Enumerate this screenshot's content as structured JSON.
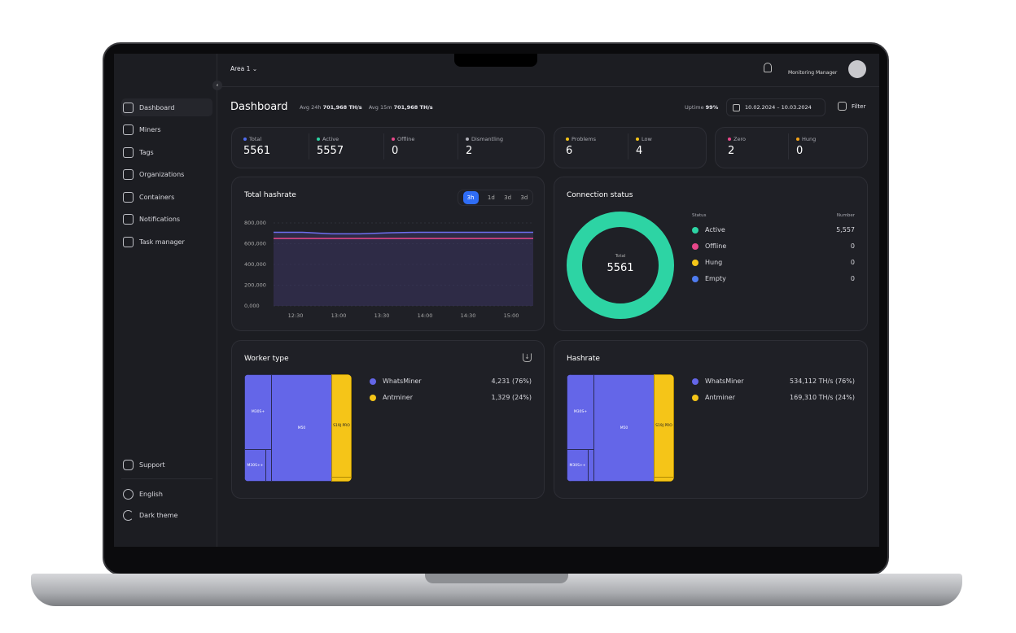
{
  "header": {
    "area": "Area 1",
    "user": "Monitoring Manager"
  },
  "sidebar": {
    "items": [
      {
        "label": "Dashboard",
        "icon": "home-icon"
      },
      {
        "label": "Miners",
        "icon": "miner-icon"
      },
      {
        "label": "Tags",
        "icon": "tag-icon"
      },
      {
        "label": "Organizations",
        "icon": "organizations-icon"
      },
      {
        "label": "Containers",
        "icon": "containers-icon"
      },
      {
        "label": "Notifications",
        "icon": "bell-icon"
      },
      {
        "label": "Task manager",
        "icon": "task-icon"
      }
    ],
    "support": "Support",
    "language": "English",
    "theme": "Dark theme"
  },
  "page": {
    "title": "Dashboard",
    "avg24_label": "Avg 24h",
    "avg24": "701,968 TH/s",
    "avg15_label": "Avg 15m",
    "avg15": "701,968 TH/s",
    "uptime_label": "Uptime",
    "uptime": "99%",
    "date_range": "10.02.2024 – 10.03.2024",
    "filter": "Filter"
  },
  "stats": [
    {
      "label": "Total",
      "value": "5561",
      "color": "#4f6cf0"
    },
    {
      "label": "Active",
      "value": "5557",
      "color": "#2dd4a4"
    },
    {
      "label": "Offline",
      "value": "0",
      "color": "#e8478a"
    },
    {
      "label": "Dismantling",
      "value": "2",
      "color": "#b0b0b8"
    },
    {
      "label": "Problems",
      "value": "6",
      "color": "#f5c518"
    },
    {
      "label": "Low",
      "value": "4",
      "color": "#f5c518"
    },
    {
      "label": "Zero",
      "value": "2",
      "color": "#e8478a"
    },
    {
      "label": "Hung",
      "value": "0",
      "color": "#f5a318"
    }
  ],
  "hashrate_chart": {
    "title": "Total hashrate",
    "ranges": [
      "3h",
      "1d",
      "3d",
      "3d"
    ],
    "selected": "3h"
  },
  "chart_data": {
    "type": "area",
    "title": "Total hashrate",
    "x": [
      "12:15",
      "12:30",
      "12:45",
      "13:00",
      "13:15",
      "13:30",
      "14:00",
      "14:30",
      "15:00",
      "15:15"
    ],
    "series": [
      {
        "values": [
          710000,
          710000,
          695000,
          695000,
          705000,
          710000,
          710000,
          710000,
          710000,
          710000
        ],
        "color": "#6e6ef0"
      },
      {
        "values": [
          650000,
          650000,
          650000,
          650000,
          650000,
          650000,
          650000,
          650000,
          650000,
          650000
        ],
        "color": "#e8478a"
      }
    ],
    "xticks": [
      "12:30",
      "13:00",
      "13:30",
      "14:00",
      "14:30",
      "15:00"
    ],
    "yticks": [
      "800,000",
      "600,000",
      "400,000",
      "200,000",
      "0,000"
    ],
    "ylim": [
      0,
      800000
    ],
    "grid": true
  },
  "connection": {
    "title": "Connection status",
    "total_label": "Total",
    "total": "5561",
    "col_status": "Status",
    "col_number": "Number",
    "rows": [
      {
        "label": "Active",
        "value": "5,557",
        "color": "#2dd4a4"
      },
      {
        "label": "Offline",
        "value": "0",
        "color": "#e8478a"
      },
      {
        "label": "Hung",
        "value": "0",
        "color": "#f5c518"
      },
      {
        "label": "Empty",
        "value": "0",
        "color": "#4f7cf0"
      }
    ]
  },
  "worker": {
    "title": "Worker type",
    "legend": [
      {
        "label": "WhatsMiner",
        "value": "4,231 (76%)",
        "color": "#6466e8"
      },
      {
        "label": "Antminer",
        "value": "1,329 (24%)",
        "color": "#f5c518"
      }
    ],
    "tiles": [
      "M30S+",
      "M50",
      "M30S++",
      "S19J PRO"
    ]
  },
  "hashrate": {
    "title": "Hashrate",
    "legend": [
      {
        "label": "WhatsMiner",
        "value": "534,112 TH/s (76%)",
        "color": "#6466e8"
      },
      {
        "label": "Antminer",
        "value": "169,310 TH/s (24%)",
        "color": "#f5c518"
      }
    ],
    "tiles": [
      "M30S+",
      "M50",
      "M30S++",
      "S19J PRO"
    ]
  }
}
